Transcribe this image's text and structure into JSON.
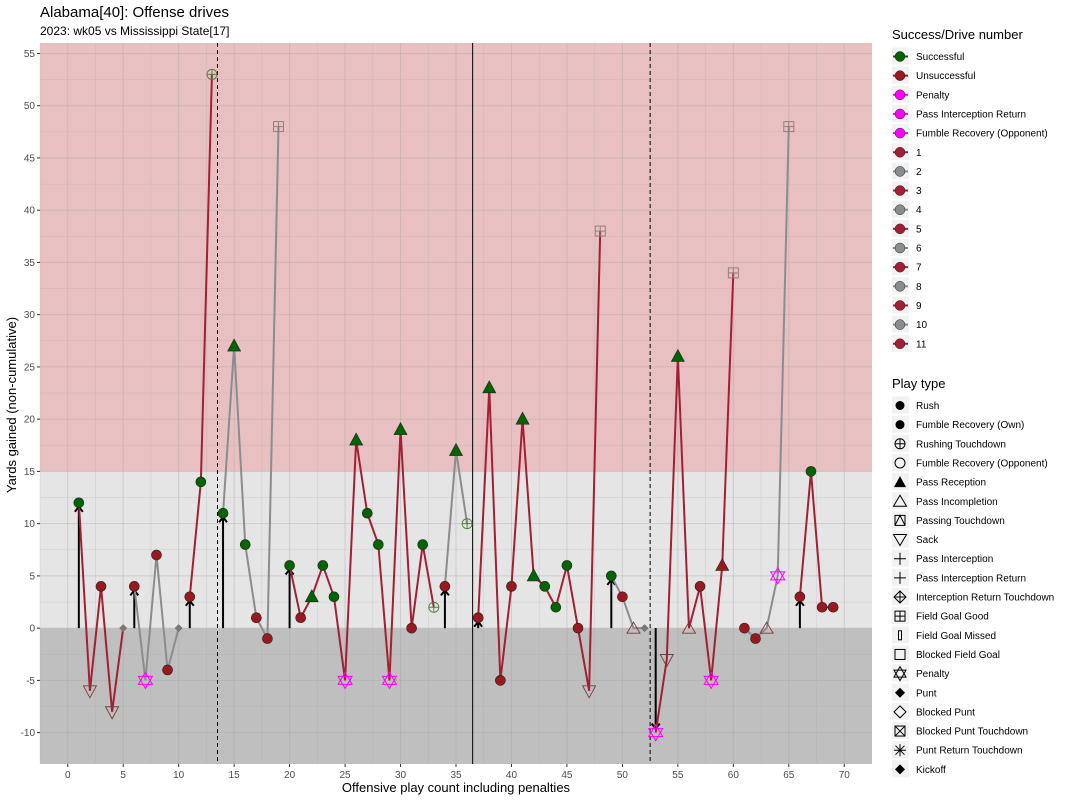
{
  "chart_data": {
    "type": "line",
    "title": "Alabama[40]: Offense drives",
    "subtitle": "2023: wk05 vs Mississippi State[17]",
    "xlabel": "Offensive play count including penalties",
    "ylabel": "Yards gained (non-cumulative)",
    "xlim": [
      -2.5,
      72.5
    ],
    "ylim": [
      -13,
      56
    ],
    "x_ticks": [
      0,
      5,
      10,
      15,
      20,
      25,
      30,
      35,
      40,
      45,
      50,
      55,
      60,
      65,
      70
    ],
    "y_ticks": [
      -10,
      -5,
      0,
      5,
      10,
      15,
      20,
      25,
      30,
      35,
      40,
      45,
      50,
      55
    ],
    "grid": true,
    "bands": [
      {
        "from": -13,
        "to": 0,
        "color": "#bfbfbf"
      },
      {
        "from": 0,
        "to": 15,
        "color": "#e5e5e5"
      },
      {
        "from": 15,
        "to": 56,
        "color": "#e8c0c2"
      }
    ],
    "half_line_x": 36.5,
    "quarter_lines_x": [
      13.5,
      52.5
    ],
    "colors": {
      "successful": "#006400",
      "unsuccessful": "#99191f",
      "penalty": "#ff00ff",
      "drive_odd": "#a31f34",
      "drive_even": "#8a8d8f",
      "first_down_arrow": "#000000"
    },
    "drives": [
      {
        "name": "1",
        "points": [
          [
            1,
            12
          ],
          [
            2,
            -6
          ],
          [
            3,
            4
          ],
          [
            4,
            -8
          ],
          [
            5,
            0
          ]
        ]
      },
      {
        "name": "2",
        "points": [
          [
            6,
            4
          ],
          [
            7,
            -5
          ],
          [
            8,
            7
          ],
          [
            9,
            -4
          ],
          [
            10,
            0
          ]
        ]
      },
      {
        "name": "3",
        "points": [
          [
            11,
            3
          ],
          [
            12,
            14
          ],
          [
            13,
            53
          ]
        ]
      },
      {
        "name": "4",
        "points": [
          [
            14,
            11
          ],
          [
            15,
            27
          ],
          [
            16,
            8
          ],
          [
            17,
            1
          ],
          [
            18,
            -1
          ],
          [
            19,
            48
          ]
        ]
      },
      {
        "name": "5",
        "points": [
          [
            20,
            6
          ],
          [
            21,
            1
          ],
          [
            22,
            3
          ],
          [
            23,
            6
          ],
          [
            24,
            3
          ],
          [
            25,
            -5
          ],
          [
            26,
            18
          ],
          [
            27,
            11
          ],
          [
            28,
            8
          ],
          [
            29,
            -5
          ],
          [
            30,
            19
          ],
          [
            31,
            0
          ],
          [
            32,
            8
          ],
          [
            33,
            2
          ]
        ]
      },
      {
        "name": "6",
        "points": [
          [
            34,
            4
          ],
          [
            35,
            17
          ],
          [
            36,
            10
          ]
        ]
      },
      {
        "name": "7",
        "points": [
          [
            37,
            1
          ],
          [
            38,
            23
          ],
          [
            39,
            -5
          ],
          [
            40,
            4
          ],
          [
            41,
            20
          ],
          [
            42,
            5
          ],
          [
            43,
            4
          ],
          [
            44,
            2
          ],
          [
            45,
            6
          ],
          [
            46,
            0
          ],
          [
            47,
            -6
          ],
          [
            48,
            38
          ]
        ]
      },
      {
        "name": "8",
        "points": [
          [
            49,
            5
          ],
          [
            50,
            3
          ],
          [
            51,
            0
          ],
          [
            52,
            0
          ]
        ]
      },
      {
        "name": "9",
        "points": [
          [
            53,
            -10
          ],
          [
            54,
            -3
          ],
          [
            55,
            26
          ],
          [
            56,
            0
          ],
          [
            57,
            4
          ],
          [
            58,
            -5
          ],
          [
            59,
            6
          ],
          [
            60,
            34
          ]
        ]
      },
      {
        "name": "10",
        "points": [
          [
            61,
            0
          ],
          [
            62,
            -1
          ],
          [
            63,
            0
          ],
          [
            64,
            5
          ],
          [
            65,
            48
          ]
        ]
      },
      {
        "name": "11",
        "points": [
          [
            66,
            3
          ],
          [
            67,
            15
          ],
          [
            68,
            2
          ],
          [
            69,
            2
          ]
        ]
      }
    ],
    "plays": [
      {
        "x": 1,
        "y": 12,
        "shape": "circle",
        "status": "successful",
        "first_down": true
      },
      {
        "x": 2,
        "y": -6,
        "shape": "sack",
        "status": "unsuccessful"
      },
      {
        "x": 3,
        "y": 4,
        "shape": "circle",
        "status": "unsuccessful"
      },
      {
        "x": 4,
        "y": -8,
        "shape": "sack",
        "status": "unsuccessful"
      },
      {
        "x": 5,
        "y": 0,
        "shape": "punt",
        "status": "gray"
      },
      {
        "x": 6,
        "y": 4,
        "shape": "circle",
        "status": "unsuccessful",
        "first_down": true
      },
      {
        "x": 7,
        "y": -5,
        "shape": "penalty",
        "status": "penalty"
      },
      {
        "x": 8,
        "y": 7,
        "shape": "circle",
        "status": "unsuccessful"
      },
      {
        "x": 9,
        "y": -4,
        "shape": "circle",
        "status": "unsuccessful"
      },
      {
        "x": 10,
        "y": 0,
        "shape": "punt",
        "status": "gray"
      },
      {
        "x": 11,
        "y": 3,
        "shape": "circle",
        "status": "unsuccessful",
        "first_down": true
      },
      {
        "x": 12,
        "y": 14,
        "shape": "circle",
        "status": "successful"
      },
      {
        "x": 13,
        "y": 53,
        "shape": "rush_td",
        "status": "td"
      },
      {
        "x": 14,
        "y": 11,
        "shape": "circle",
        "status": "successful",
        "first_down": true
      },
      {
        "x": 15,
        "y": 27,
        "shape": "triangle",
        "status": "successful"
      },
      {
        "x": 16,
        "y": 8,
        "shape": "circle",
        "status": "successful"
      },
      {
        "x": 17,
        "y": 1,
        "shape": "circle",
        "status": "unsuccessful"
      },
      {
        "x": 18,
        "y": -1,
        "shape": "circle",
        "status": "unsuccessful"
      },
      {
        "x": 19,
        "y": 48,
        "shape": "fg_good",
        "status": "fg"
      },
      {
        "x": 20,
        "y": 6,
        "shape": "circle",
        "status": "successful",
        "first_down": true
      },
      {
        "x": 21,
        "y": 1,
        "shape": "circle",
        "status": "unsuccessful"
      },
      {
        "x": 22,
        "y": 3,
        "shape": "triangle",
        "status": "successful"
      },
      {
        "x": 23,
        "y": 6,
        "shape": "circle",
        "status": "successful"
      },
      {
        "x": 24,
        "y": 3,
        "shape": "circle",
        "status": "successful"
      },
      {
        "x": 25,
        "y": -5,
        "shape": "penalty",
        "status": "penalty"
      },
      {
        "x": 26,
        "y": 18,
        "shape": "triangle",
        "status": "successful"
      },
      {
        "x": 27,
        "y": 11,
        "shape": "circle",
        "status": "successful"
      },
      {
        "x": 28,
        "y": 8,
        "shape": "circle",
        "status": "successful"
      },
      {
        "x": 29,
        "y": -5,
        "shape": "penalty",
        "status": "penalty"
      },
      {
        "x": 30,
        "y": 19,
        "shape": "triangle",
        "status": "successful"
      },
      {
        "x": 31,
        "y": 0,
        "shape": "circle",
        "status": "unsuccessful"
      },
      {
        "x": 32,
        "y": 8,
        "shape": "circle",
        "status": "successful"
      },
      {
        "x": 33,
        "y": 2,
        "shape": "rush_td",
        "status": "td"
      },
      {
        "x": 34,
        "y": 4,
        "shape": "circle",
        "status": "unsuccessful",
        "first_down": true
      },
      {
        "x": 35,
        "y": 17,
        "shape": "triangle",
        "status": "successful"
      },
      {
        "x": 36,
        "y": 10,
        "shape": "rush_td",
        "status": "td"
      },
      {
        "x": 37,
        "y": 1,
        "shape": "circle",
        "status": "unsuccessful",
        "first_down": true
      },
      {
        "x": 38,
        "y": 23,
        "shape": "triangle",
        "status": "successful"
      },
      {
        "x": 39,
        "y": -5,
        "shape": "circle",
        "status": "unsuccessful"
      },
      {
        "x": 40,
        "y": 4,
        "shape": "circle",
        "status": "unsuccessful"
      },
      {
        "x": 41,
        "y": 20,
        "shape": "triangle",
        "status": "successful"
      },
      {
        "x": 42,
        "y": 5,
        "shape": "triangle",
        "status": "successful"
      },
      {
        "x": 43,
        "y": 4,
        "shape": "circle",
        "status": "successful"
      },
      {
        "x": 44,
        "y": 2,
        "shape": "circle",
        "status": "successful"
      },
      {
        "x": 45,
        "y": 6,
        "shape": "circle",
        "status": "successful"
      },
      {
        "x": 46,
        "y": 0,
        "shape": "circle",
        "status": "unsuccessful"
      },
      {
        "x": 47,
        "y": -6,
        "shape": "sack",
        "status": "unsuccessful"
      },
      {
        "x": 48,
        "y": 38,
        "shape": "fg_good",
        "status": "fg"
      },
      {
        "x": 49,
        "y": 5,
        "shape": "circle",
        "status": "successful",
        "first_down": true
      },
      {
        "x": 50,
        "y": 3,
        "shape": "circle",
        "status": "unsuccessful"
      },
      {
        "x": 51,
        "y": 0,
        "shape": "incomplete",
        "status": "unsuccessful"
      },
      {
        "x": 52,
        "y": 0,
        "shape": "punt",
        "status": "gray"
      },
      {
        "x": 53,
        "y": -10,
        "shape": "penalty",
        "status": "penalty",
        "first_down": true
      },
      {
        "x": 54,
        "y": -3,
        "shape": "sack",
        "status": "unsuccessful"
      },
      {
        "x": 55,
        "y": 26,
        "shape": "triangle",
        "status": "successful"
      },
      {
        "x": 56,
        "y": 0,
        "shape": "incomplete",
        "status": "unsuccessful"
      },
      {
        "x": 57,
        "y": 4,
        "shape": "circle",
        "status": "unsuccessful"
      },
      {
        "x": 58,
        "y": -5,
        "shape": "penalty",
        "status": "penalty"
      },
      {
        "x": 59,
        "y": 6,
        "shape": "triangle",
        "status": "unsuccessful"
      },
      {
        "x": 60,
        "y": 34,
        "shape": "fg_good",
        "status": "fg"
      },
      {
        "x": 61,
        "y": 0,
        "shape": "circle",
        "status": "unsuccessful"
      },
      {
        "x": 62,
        "y": -1,
        "shape": "circle",
        "status": "unsuccessful"
      },
      {
        "x": 63,
        "y": 0,
        "shape": "incomplete",
        "status": "unsuccessful"
      },
      {
        "x": 64,
        "y": 5,
        "shape": "penalty",
        "status": "penalty"
      },
      {
        "x": 65,
        "y": 48,
        "shape": "fg_good",
        "status": "fg"
      },
      {
        "x": 66,
        "y": 3,
        "shape": "circle",
        "status": "unsuccessful",
        "first_down": true
      },
      {
        "x": 67,
        "y": 15,
        "shape": "circle",
        "status": "successful"
      },
      {
        "x": 68,
        "y": 2,
        "shape": "circle",
        "status": "unsuccessful"
      },
      {
        "x": 69,
        "y": 2,
        "shape": "circle",
        "status": "unsuccessful"
      }
    ],
    "legend_success": {
      "title": "Success/Drive number",
      "items": [
        {
          "label": "Successful",
          "color": "#006400"
        },
        {
          "label": "Unsuccessful",
          "color": "#99191f"
        },
        {
          "label": "Penalty",
          "color": "#ff00ff"
        },
        {
          "label": "Pass Interception Return",
          "color": "#ff00ff"
        },
        {
          "label": "Fumble Recovery (Opponent)",
          "color": "#ff00ff"
        },
        {
          "label": "1",
          "color": "#a31f34"
        },
        {
          "label": "2",
          "color": "#8a8d8f"
        },
        {
          "label": "3",
          "color": "#a31f34"
        },
        {
          "label": "4",
          "color": "#8a8d8f"
        },
        {
          "label": "5",
          "color": "#a31f34"
        },
        {
          "label": "6",
          "color": "#8a8d8f"
        },
        {
          "label": "7",
          "color": "#a31f34"
        },
        {
          "label": "8",
          "color": "#8a8d8f"
        },
        {
          "label": "9",
          "color": "#a31f34"
        },
        {
          "label": "10",
          "color": "#8a8d8f"
        },
        {
          "label": "11",
          "color": "#a31f34"
        }
      ]
    },
    "legend_play": {
      "title": "Play type",
      "items": [
        {
          "label": "Rush",
          "symbol": "dot"
        },
        {
          "label": "Fumble Recovery (Own)",
          "symbol": "dot"
        },
        {
          "label": "Rushing Touchdown",
          "symbol": "circle-plus"
        },
        {
          "label": "Fumble Recovery (Opponent)",
          "symbol": "open-circle"
        },
        {
          "label": "Pass Reception",
          "symbol": "filled-triangle"
        },
        {
          "label": "Pass Incompletion",
          "symbol": "open-triangle"
        },
        {
          "label": "Passing Touchdown",
          "symbol": "square-triangle"
        },
        {
          "label": "Sack",
          "symbol": "down-triangle"
        },
        {
          "label": "Pass Interception",
          "symbol": "plus"
        },
        {
          "label": "Pass Interception Return",
          "symbol": "plus"
        },
        {
          "label": "Interception Return Touchdown",
          "symbol": "diamond-plus"
        },
        {
          "label": "Field Goal Good",
          "symbol": "square-plus"
        },
        {
          "label": "Field Goal Missed",
          "symbol": "thin-rect"
        },
        {
          "label": "Blocked Field Goal",
          "symbol": "open-square"
        },
        {
          "label": "Penalty",
          "symbol": "star-of-david"
        },
        {
          "label": "Punt",
          "symbol": "filled-diamond"
        },
        {
          "label": "Blocked Punt",
          "symbol": "open-diamond"
        },
        {
          "label": "Blocked Punt Touchdown",
          "symbol": "square-x"
        },
        {
          "label": "Punt Return Touchdown",
          "symbol": "asterisk"
        },
        {
          "label": "Kickoff",
          "symbol": "filled-diamond"
        }
      ]
    }
  }
}
